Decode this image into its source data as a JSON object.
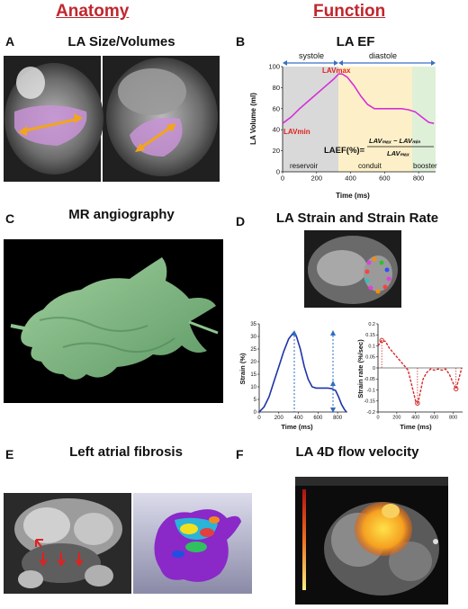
{
  "headers": {
    "anatomy": "Anatomy",
    "function": "Function"
  },
  "panels": {
    "A": {
      "letter": "A",
      "title": "LA Size/Volumes"
    },
    "B": {
      "letter": "B",
      "title": "LA EF"
    },
    "C": {
      "letter": "C",
      "title": "MR angiography"
    },
    "D": {
      "letter": "D",
      "title": "LA Strain and Strain Rate"
    },
    "E": {
      "letter": "E",
      "title": "Left atrial fibrosis"
    },
    "F": {
      "letter": "F",
      "title": "LA 4D flow velocity"
    }
  },
  "ef_chart": {
    "phase_systole": "systole",
    "phase_diastole": "diastole",
    "lavmax": "LAVmax",
    "lavmin": "LAVmin",
    "formula_lhs": "LAEF(%)=",
    "formula_num": "LAVₘₐₓ − LAVₘᵢₙ",
    "formula_den": "LAVₘₐₓ",
    "phase_reservoir": "reservoir",
    "phase_conduit": "conduit",
    "phase_booster": "booster"
  },
  "chart_data": [
    {
      "type": "line",
      "title": "",
      "xlabel": "Time (ms)",
      "ylabel": "LA Volume (ml)",
      "xlim": [
        0,
        900
      ],
      "ylim": [
        0,
        100
      ],
      "xticks": [
        "0",
        "200",
        "400",
        "600",
        "800"
      ],
      "yticks": [
        "0",
        "20",
        "40",
        "60",
        "80",
        "100"
      ],
      "x": [
        0,
        50,
        100,
        150,
        200,
        250,
        300,
        330,
        350,
        380,
        420,
        460,
        500,
        540,
        580,
        620,
        660,
        700,
        740,
        780,
        820,
        860,
        890
      ],
      "y": [
        46,
        52,
        60,
        67,
        74,
        81,
        88,
        93,
        93,
        90,
        82,
        72,
        64,
        60,
        60,
        60,
        60,
        60,
        59,
        57,
        52,
        47,
        46
      ],
      "color": "#d62fd6"
    },
    {
      "type": "line",
      "title": "",
      "xlabel": "Time (ms)",
      "ylabel": "Strain (%)",
      "xlim": [
        0,
        900
      ],
      "ylim": [
        0,
        35
      ],
      "xticks": [
        "0",
        "200",
        "400",
        "600",
        "800"
      ],
      "yticks": [
        "0",
        "5",
        "10",
        "15",
        "20",
        "25",
        "30",
        "35"
      ],
      "x": [
        0,
        50,
        100,
        150,
        200,
        250,
        300,
        350,
        380,
        420,
        460,
        500,
        540,
        580,
        620,
        660,
        700,
        740,
        780,
        810,
        840,
        870,
        890
      ],
      "y": [
        0,
        2,
        6,
        12,
        18,
        24,
        29,
        31.5,
        30,
        25,
        18,
        13,
        10,
        9.5,
        9.5,
        9.5,
        9.5,
        9.3,
        8.5,
        6,
        3,
        1,
        0
      ],
      "color": "#1f33a8"
    },
    {
      "type": "line",
      "title": "",
      "xlabel": "Time (ms)",
      "ylabel": "Strain rate (%/sec)",
      "xlim": [
        0,
        900
      ],
      "ylim": [
        -0.2,
        0.2
      ],
      "xticks": [
        "0",
        "200",
        "400",
        "600",
        "800"
      ],
      "yticks": [
        "-0.2",
        "-0.15",
        "-0.1",
        "-0.05",
        "0",
        "0.05",
        "0.1",
        "0.15",
        "0.2"
      ],
      "x": [
        0,
        40,
        80,
        120,
        160,
        200,
        240,
        280,
        320,
        360,
        400,
        420,
        440,
        480,
        520,
        560,
        600,
        640,
        680,
        720,
        760,
        800,
        830,
        860,
        890
      ],
      "y": [
        0.1,
        0.125,
        0.12,
        0.09,
        0.07,
        0.05,
        0.03,
        0.01,
        -0.01,
        -0.08,
        -0.15,
        -0.16,
        -0.13,
        -0.05,
        -0.02,
        -0.005,
        -0.01,
        -0.005,
        -0.01,
        -0.005,
        -0.03,
        -0.07,
        -0.095,
        -0.05,
        0
      ],
      "color": "#d42a2a"
    }
  ]
}
